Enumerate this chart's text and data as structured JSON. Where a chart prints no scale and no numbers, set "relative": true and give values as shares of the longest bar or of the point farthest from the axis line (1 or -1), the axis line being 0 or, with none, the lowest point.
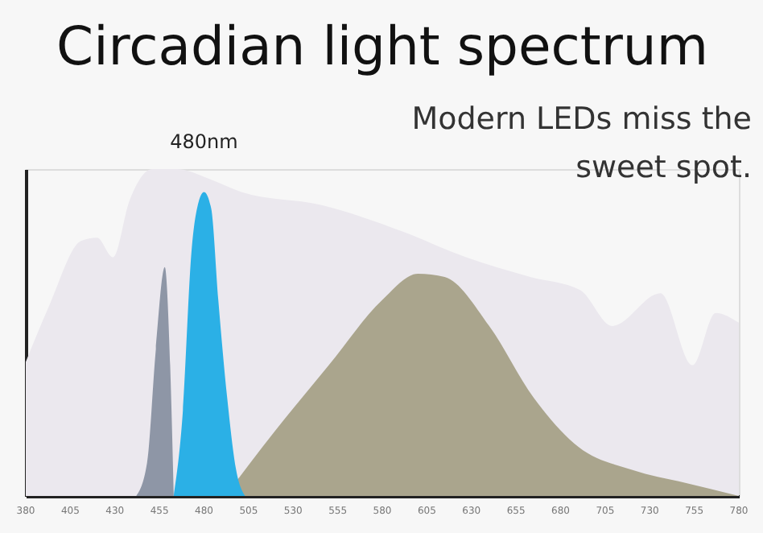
{
  "chart_data": {
    "type": "area",
    "title": "Circadian light spectrum",
    "relative": true,
    "grid": false,
    "xlim": [
      380,
      780
    ],
    "xticks": [
      380,
      405,
      430,
      455,
      480,
      505,
      530,
      555,
      580,
      605,
      630,
      655,
      680,
      705,
      730,
      755,
      780
    ],
    "series": [
      {
        "color": "#ebe8ee",
        "x": [
          380,
          393,
          411,
          420,
          429,
          438,
          451,
          465,
          483,
          501,
          546,
          591,
          627,
          663,
          691,
          709,
          736,
          754,
          767,
          780
        ],
        "values": [
          0.41,
          0.58,
          0.78,
          0.79,
          0.73,
          0.9,
          1.0,
          1.0,
          0.97,
          0.93,
          0.89,
          0.81,
          0.73,
          0.67,
          0.63,
          0.52,
          0.62,
          0.4,
          0.56,
          0.53
        ]
      },
      {
        "color": "#8e96a6",
        "x": [
          442,
          448,
          453,
          458,
          461,
          463
        ],
        "values": [
          0,
          0.1,
          0.45,
          0.7,
          0.4,
          0
        ]
      },
      {
        "color": "#aaa58d",
        "x": [
          492,
          520,
          550,
          580,
          600,
          615,
          640,
          665,
          690,
          720,
          750,
          780
        ],
        "values": [
          0,
          0.2,
          0.4,
          0.6,
          0.68,
          0.67,
          0.52,
          0.3,
          0.15,
          0.08,
          0.04,
          0
        ]
      },
      {
        "color": "#2bb0e6",
        "x": [
          463,
          468,
          473,
          477,
          480,
          484,
          488,
          493,
          498,
          503
        ],
        "values": [
          0,
          0.25,
          0.75,
          0.9,
          0.93,
          0.88,
          0.6,
          0.3,
          0.08,
          0
        ]
      }
    ],
    "annotations": [
      {
        "text": "480nm",
        "x": 480,
        "y": 0.93
      },
      "Modern LEDs miss the\nsweet spot."
    ]
  }
}
